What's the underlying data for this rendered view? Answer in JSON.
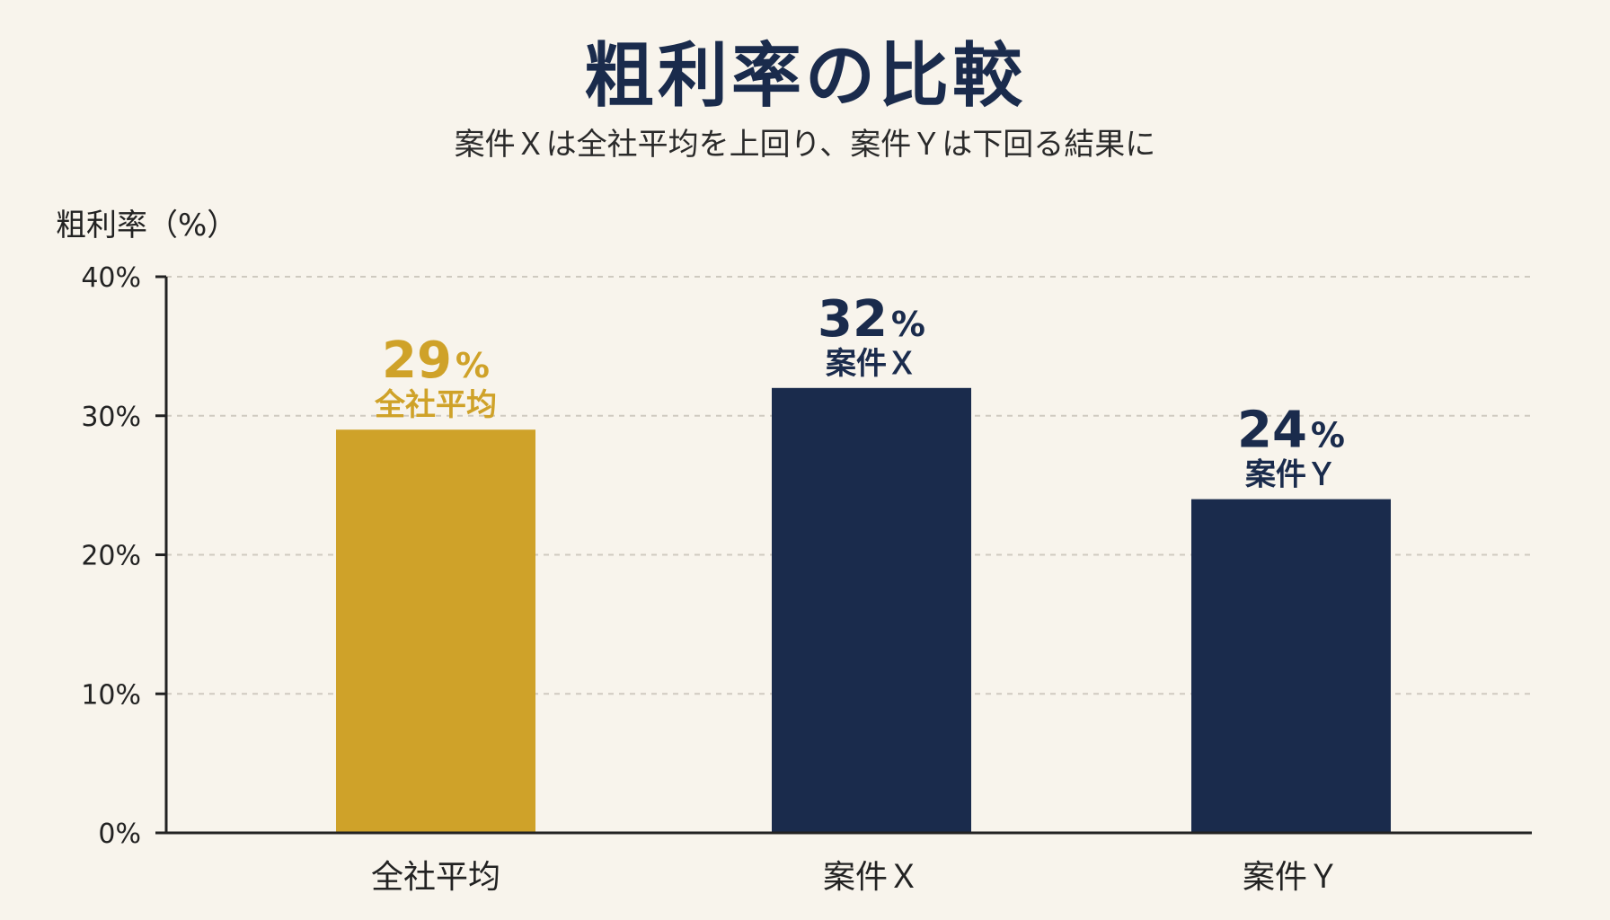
{
  "title": "粗利率の比較",
  "subtitle": "案件Ｘは全社平均を上回り、案件Ｙは下回る結果に",
  "colors": {
    "bg": "#f8f4ec",
    "gold": "#cfa229",
    "navy": "#1a2b4c",
    "axis": "#222222",
    "grid": "#cfcac0"
  },
  "chart_data": {
    "type": "bar",
    "ylabel": "粗利率（%）",
    "ylim": [
      0,
      40
    ],
    "yticks": [
      0,
      10,
      20,
      30,
      40
    ],
    "ytick_labels": [
      "0%",
      "10%",
      "20%",
      "30%",
      "40%"
    ],
    "grid": true,
    "categories": [
      "全社平均",
      "案件Ｘ",
      "案件Ｙ"
    ],
    "values": [
      29,
      32,
      24
    ],
    "value_labels": [
      "29",
      "32",
      "24"
    ],
    "value_unit": "%",
    "bar_names": [
      "全社平均",
      "案件Ｘ",
      "案件Ｙ"
    ],
    "bar_colors": [
      "#cfa229",
      "#1a2b4c",
      "#1a2b4c"
    ]
  }
}
